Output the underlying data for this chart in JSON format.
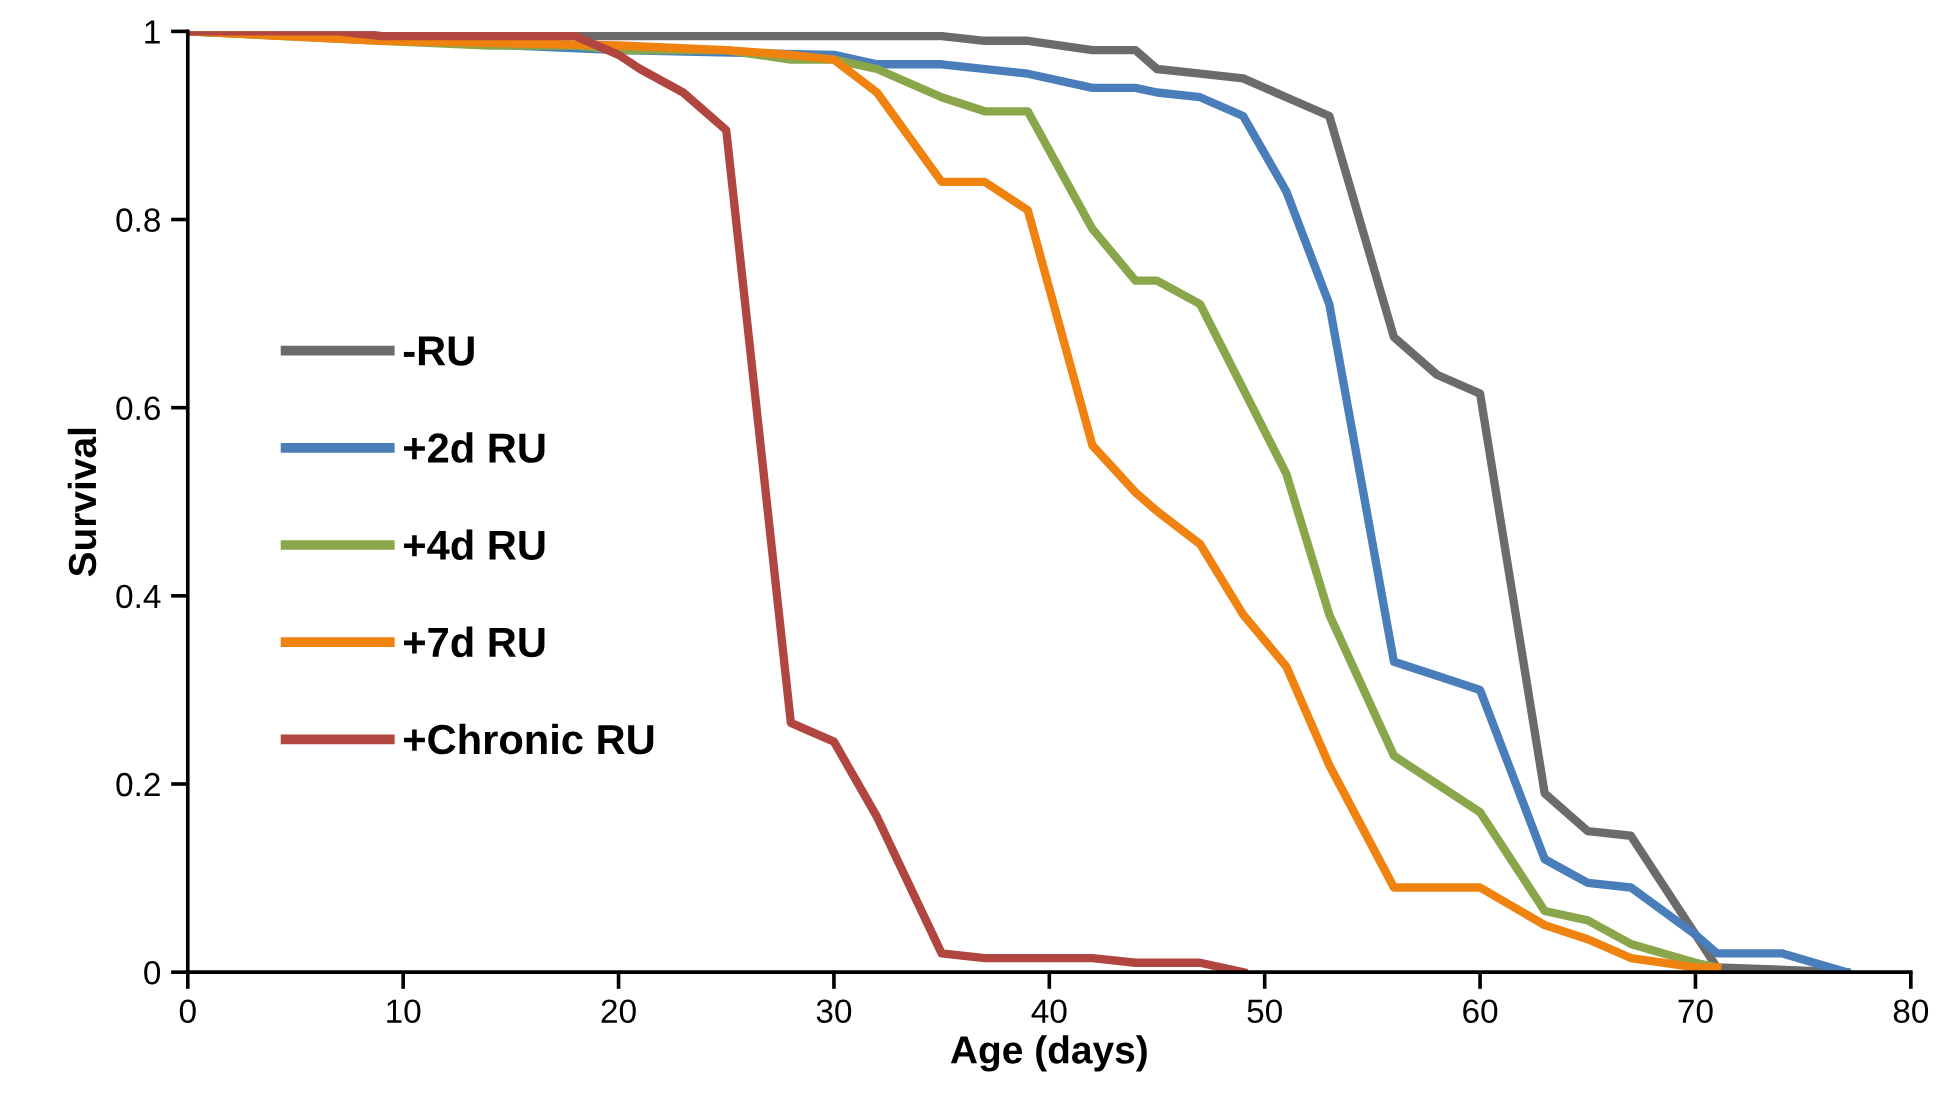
{
  "chart_data": {
    "type": "line",
    "xlabel": "Age (days)",
    "ylabel": "Survival",
    "xlim": [
      0,
      80
    ],
    "xticks": [
      0,
      10,
      20,
      30,
      40,
      50,
      60,
      70,
      80
    ],
    "ylim": [
      0,
      1
    ],
    "yticks": [
      0,
      {
        "value": 0.2,
        "label": "0.2"
      },
      {
        "value": 0.4,
        "label": "0.4"
      },
      {
        "value": 0.6,
        "label": "0.6"
      },
      {
        "value": 0.8,
        "label": "0.8"
      },
      1
    ],
    "grid": false,
    "legend": "left",
    "marker": "none",
    "line_style": "solid",
    "series": [
      {
        "name": "-RU",
        "color": "#6b6b6b",
        "x": [
          0,
          7,
          9,
          35,
          37,
          39,
          42,
          44,
          45,
          47,
          49,
          51,
          53,
          56,
          58,
          60,
          63,
          65,
          67,
          70,
          71,
          77
        ],
        "values": [
          1,
          1,
          0.995,
          0.995,
          0.99,
          0.99,
          0.98,
          0.98,
          0.96,
          0.955,
          0.95,
          0.93,
          0.91,
          0.675,
          0.635,
          0.615,
          0.19,
          0.15,
          0.145,
          0.04,
          0.005,
          0.0
        ]
      },
      {
        "name": "+2d RU",
        "color": "#4a7ebb",
        "x": [
          0,
          20,
          30,
          32,
          35,
          39,
          42,
          44,
          45,
          47,
          49,
          51,
          53,
          56,
          58,
          60,
          63,
          65,
          67,
          70,
          71,
          74,
          77
        ],
        "values": [
          1,
          0.98,
          0.975,
          0.965,
          0.965,
          0.955,
          0.94,
          0.94,
          0.935,
          0.93,
          0.91,
          0.83,
          0.71,
          0.33,
          0.315,
          0.3,
          0.12,
          0.095,
          0.09,
          0.04,
          0.02,
          0.02,
          0.0
        ]
      },
      {
        "name": "+4d RU",
        "color": "#8aa64a",
        "x": [
          0,
          9,
          14,
          18,
          20,
          25,
          28,
          30,
          32,
          35,
          37,
          39,
          42,
          44,
          45,
          47,
          51,
          53,
          56,
          58,
          60,
          63,
          65,
          67,
          70,
          71
        ],
        "values": [
          1,
          0.99,
          0.985,
          0.985,
          0.98,
          0.98,
          0.97,
          0.97,
          0.96,
          0.93,
          0.915,
          0.915,
          0.79,
          0.735,
          0.735,
          0.71,
          0.53,
          0.38,
          0.23,
          0.2,
          0.17,
          0.065,
          0.055,
          0.03,
          0.01,
          0.005
        ]
      },
      {
        "name": "+7d RU",
        "color": "#f0820f",
        "x": [
          0,
          9,
          20,
          25,
          28,
          30,
          32,
          35,
          37,
          39,
          42,
          44,
          45,
          47,
          49,
          51,
          53,
          56,
          60,
          63,
          65,
          67,
          70,
          71
        ],
        "values": [
          1,
          0.99,
          0.985,
          0.98,
          0.975,
          0.97,
          0.935,
          0.84,
          0.84,
          0.81,
          0.56,
          0.51,
          0.49,
          0.455,
          0.38,
          0.325,
          0.22,
          0.09,
          0.09,
          0.05,
          0.035,
          0.015,
          0.005,
          0.005
        ]
      },
      {
        "name": "+Chronic RU",
        "color": "#b0463f",
        "x": [
          0,
          7,
          9,
          18,
          20,
          21,
          23,
          25,
          28,
          30,
          32,
          35,
          37,
          42,
          44,
          47,
          49
        ],
        "values": [
          1,
          1,
          0.995,
          0.995,
          0.975,
          0.96,
          0.935,
          0.895,
          0.265,
          0.245,
          0.165,
          0.02,
          0.015,
          0.015,
          0.01,
          0.01,
          0.0
        ]
      }
    ]
  }
}
